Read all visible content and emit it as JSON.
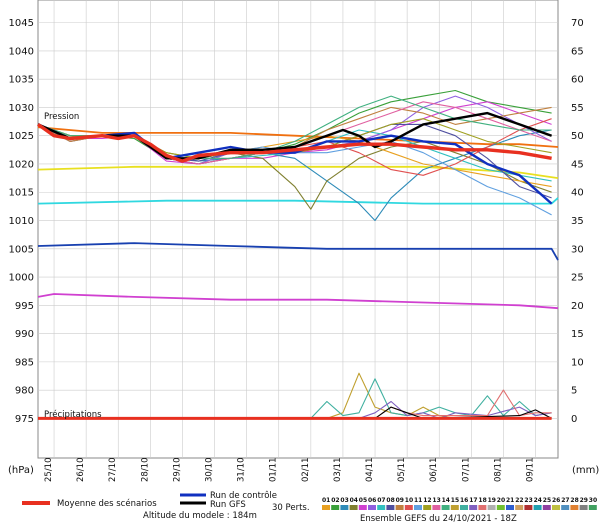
{
  "chart_data": {
    "type": "line",
    "annotations": {
      "pressure": "Pression",
      "precip": "Précipitations"
    },
    "left_axis": {
      "unit": "(hPa)",
      "ticks": [
        975,
        980,
        985,
        990,
        995,
        1000,
        1005,
        1010,
        1015,
        1020,
        1025,
        1030,
        1035,
        1040,
        1045
      ],
      "range": [
        968,
        1049
      ]
    },
    "right_axis": {
      "unit": "(mm)",
      "ticks": [
        0,
        5,
        10,
        15,
        20,
        25,
        30,
        35,
        40,
        45,
        50,
        55,
        60,
        65,
        70
      ]
    },
    "x_axis": {
      "range": [
        0,
        16.2
      ],
      "tick_labels": [
        "25/10",
        "26/10",
        "27/10",
        "28/10",
        "29/10",
        "30/10",
        "31/10",
        "01/11",
        "02/11",
        "03/11",
        "04/11",
        "05/11",
        "06/11",
        "07/11",
        "08/11",
        "09/11"
      ]
    },
    "series": [
      {
        "role": "mean",
        "color": "#e83020",
        "x": [
          0,
          0.5,
          1,
          2,
          2.5,
          3,
          3.5,
          4,
          4.5,
          5,
          6,
          7,
          8,
          9,
          10,
          11,
          12,
          13,
          14,
          15,
          16
        ],
        "y": [
          1027,
          1025,
          1024.5,
          1025,
          1024.5,
          1025,
          1023.5,
          1021.5,
          1020.5,
          1021.5,
          1022,
          1022,
          1022.5,
          1023,
          1023.5,
          1023.5,
          1023,
          1022.5,
          1022.5,
          1022,
          1021
        ]
      },
      {
        "role": "control",
        "color": "#1030c0",
        "x": [
          0,
          1,
          2,
          3,
          4,
          5,
          6,
          7,
          8,
          9,
          10,
          11,
          12,
          13,
          14,
          15,
          16
        ],
        "y": [
          1027,
          1024.5,
          1025,
          1025.5,
          1021,
          1022,
          1023,
          1022,
          1022,
          1024,
          1024,
          1025,
          1024,
          1023.5,
          1020,
          1018,
          1013
        ]
      },
      {
        "role": "gfs",
        "color": "#000000",
        "x": [
          0,
          1,
          2,
          3,
          4,
          5,
          6,
          7,
          8,
          9,
          9.5,
          10,
          10.5,
          11,
          12,
          13,
          14,
          15,
          16
        ],
        "y": [
          1027,
          1024.5,
          1025,
          1025,
          1021,
          1021,
          1022.5,
          1022.5,
          1023,
          1025,
          1026,
          1025,
          1023,
          1024,
          1027,
          1028,
          1029,
          1027,
          1025
        ]
      },
      {
        "role": "pert",
        "color": "#3aa03a",
        "x": [
          0,
          1,
          2,
          3,
          4,
          5,
          6,
          7,
          8,
          9,
          10,
          11,
          12,
          13,
          14,
          15,
          16
        ],
        "y": [
          1027,
          1024,
          1025,
          1024.5,
          1021,
          1020,
          1022,
          1022,
          1023.5,
          1026,
          1029,
          1031,
          1032,
          1033,
          1031,
          1030,
          1029
        ]
      },
      {
        "role": "pert",
        "color": "#d040d0",
        "x": [
          0,
          1,
          2,
          3,
          4,
          5,
          6,
          7,
          8,
          9,
          10,
          11,
          12,
          13,
          14,
          15,
          16
        ],
        "y": [
          1027,
          1024.5,
          1024.5,
          1025,
          1020.5,
          1020,
          1021,
          1021,
          1022,
          1022.5,
          1024,
          1026,
          1028,
          1030,
          1031,
          1029,
          1027
        ]
      },
      {
        "role": "pert",
        "color": "#2e8bb8",
        "x": [
          0,
          1,
          2,
          3,
          4,
          5,
          6,
          7,
          8,
          9,
          10,
          10.5,
          11,
          12,
          13,
          14,
          15,
          16
        ],
        "y": [
          1027,
          1025,
          1025,
          1025,
          1021.5,
          1020.5,
          1021,
          1022,
          1021,
          1017,
          1013,
          1010,
          1014,
          1019,
          1021,
          1023,
          1025,
          1026
        ]
      },
      {
        "role": "pert",
        "color": "#808030",
        "x": [
          0,
          1,
          2,
          3,
          4,
          5,
          6,
          7,
          8,
          8.5,
          9,
          10,
          11,
          12,
          13,
          14,
          15,
          16
        ],
        "y": [
          1027,
          1024.5,
          1025,
          1025,
          1022,
          1021,
          1022,
          1021,
          1016,
          1012,
          1017,
          1021,
          1023,
          1024,
          1022,
          1020,
          1017,
          1015
        ]
      },
      {
        "role": "pert",
        "color": "#9060e0",
        "x": [
          0,
          1,
          2,
          3,
          4,
          5,
          6,
          7,
          8,
          9,
          10,
          11,
          12,
          13,
          14,
          15,
          16
        ],
        "y": [
          1027,
          1024,
          1025,
          1025,
          1021,
          1020,
          1022,
          1022,
          1022,
          1023,
          1024,
          1026,
          1030,
          1032,
          1030,
          1027,
          1024
        ]
      },
      {
        "role": "pert",
        "color": "#e8a020",
        "x": [
          0,
          1,
          2,
          3,
          4,
          5,
          6,
          7,
          8,
          9,
          10,
          11,
          12,
          13,
          14,
          15,
          16
        ],
        "y": [
          1027,
          1025,
          1025,
          1025,
          1021,
          1021,
          1022,
          1023,
          1024,
          1025,
          1024,
          1022,
          1020,
          1019,
          1018,
          1017,
          1016
        ]
      },
      {
        "role": "pert",
        "color": "#30c0c0",
        "x": [
          0,
          1,
          2,
          3,
          4,
          5,
          6,
          7,
          8,
          9,
          10,
          11,
          12,
          13,
          14,
          15,
          16
        ],
        "y": [
          1027,
          1024.5,
          1025,
          1025,
          1021,
          1020,
          1021,
          1021.5,
          1022,
          1024,
          1026,
          1025,
          1023,
          1021,
          1019,
          1018,
          1017
        ]
      },
      {
        "role": "pert",
        "color": "#5050a0",
        "x": [
          0,
          1,
          2,
          3,
          4,
          5,
          6,
          7,
          8,
          9,
          10,
          11,
          12,
          13,
          14,
          15,
          16
        ],
        "y": [
          1027,
          1024.5,
          1025,
          1025,
          1021,
          1020.5,
          1022,
          1022,
          1022.5,
          1023,
          1025,
          1027,
          1027,
          1025,
          1021,
          1016,
          1014
        ]
      },
      {
        "role": "pert",
        "color": "#c08040",
        "x": [
          0,
          1,
          2,
          3,
          4,
          5,
          6,
          7,
          8,
          9,
          10,
          11,
          12,
          13,
          14,
          15,
          16
        ],
        "y": [
          1027,
          1024,
          1025,
          1025,
          1021,
          1021,
          1022,
          1022,
          1023,
          1026,
          1028,
          1030,
          1029,
          1027,
          1028,
          1029,
          1030
        ]
      },
      {
        "role": "pert",
        "color": "#e05050",
        "x": [
          0,
          1,
          2,
          3,
          4,
          5,
          6,
          7,
          8,
          9,
          10,
          11,
          12,
          13,
          14,
          15,
          16
        ],
        "y": [
          1027,
          1025,
          1025,
          1025,
          1021,
          1020,
          1021,
          1022,
          1023,
          1024,
          1022,
          1019,
          1018,
          1020,
          1023,
          1026,
          1028
        ]
      },
      {
        "role": "pert",
        "color": "#60a0e0",
        "x": [
          0,
          1,
          2,
          3,
          4,
          5,
          6,
          7,
          8,
          9,
          10,
          11,
          12,
          13,
          14,
          15,
          16
        ],
        "y": [
          1027,
          1024.5,
          1025,
          1025,
          1021,
          1021,
          1022,
          1023,
          1022,
          1022,
          1023,
          1024,
          1022,
          1019,
          1016,
          1014,
          1011
        ]
      },
      {
        "role": "pert",
        "color": "#a0a020",
        "x": [
          0,
          1,
          2,
          3,
          4,
          5,
          6,
          7,
          8,
          9,
          10,
          11,
          12,
          13,
          14,
          15,
          16
        ],
        "y": [
          1027,
          1025,
          1025,
          1025,
          1022,
          1021,
          1022,
          1022,
          1022,
          1023,
          1025,
          1027,
          1028,
          1026,
          1024,
          1023,
          1022
        ]
      },
      {
        "role": "pert",
        "color": "#e060a0",
        "x": [
          0,
          1,
          2,
          3,
          4,
          5,
          6,
          7,
          8,
          9,
          10,
          11,
          12,
          13,
          14,
          15,
          16
        ],
        "y": [
          1027,
          1024.5,
          1025,
          1025,
          1021,
          1020,
          1021,
          1022,
          1023,
          1025,
          1027,
          1029,
          1031,
          1030,
          1028,
          1026,
          1024
        ]
      },
      {
        "role": "pert",
        "color": "#40b080",
        "x": [
          0,
          1,
          2,
          3,
          4,
          5,
          6,
          7,
          8,
          9,
          10,
          11,
          12,
          13,
          14,
          15,
          16
        ],
        "y": [
          1027,
          1025,
          1025,
          1025,
          1021,
          1021,
          1021,
          1022,
          1024,
          1027,
          1030,
          1032,
          1030,
          1028,
          1027,
          1026,
          1026
        ]
      },
      {
        "role": "other",
        "color": "#f07010",
        "x": [
          0,
          2,
          4,
          6,
          8,
          10,
          12,
          14,
          15,
          16.2
        ],
        "y": [
          1026.5,
          1025.5,
          1025.5,
          1025.5,
          1025,
          1024.5,
          1024,
          1023.5,
          1023.5,
          1023
        ]
      },
      {
        "role": "other",
        "color": "#e8e020",
        "x": [
          0,
          3,
          6,
          9,
          12,
          15,
          16.2
        ],
        "y": [
          1019,
          1019.5,
          1019.5,
          1019.5,
          1019.5,
          1018.5,
          1017.5
        ]
      },
      {
        "role": "other",
        "color": "#30d8e0",
        "x": [
          0,
          4,
          8,
          12,
          16,
          16.2
        ],
        "y": [
          1013,
          1013.5,
          1013.5,
          1013,
          1013,
          1014
        ]
      },
      {
        "role": "other",
        "color": "#1840b0",
        "x": [
          0,
          3,
          6,
          9,
          12,
          15,
          16,
          16.2
        ],
        "y": [
          1005.5,
          1006,
          1005.5,
          1005,
          1005,
          1005,
          1005,
          1003
        ]
      },
      {
        "role": "other",
        "color": "#d040d0",
        "x": [
          0,
          0.5,
          3,
          6,
          9,
          12,
          15,
          16.2
        ],
        "y": [
          996.5,
          997,
          996.5,
          996,
          996,
          995.5,
          995,
          994.5
        ]
      },
      {
        "role": "precip",
        "color": "#c0a030",
        "x": [
          9,
          9.5,
          10,
          10.5,
          11,
          11.5,
          12,
          12.5,
          13
        ],
        "y": [
          975,
          976,
          983,
          977,
          976,
          975.5,
          977,
          975.5,
          975
        ]
      },
      {
        "role": "precip",
        "color": "#40b0a0",
        "x": [
          8.5,
          9,
          9.5,
          10,
          10.5,
          11,
          11.5,
          12,
          12.5,
          13,
          13.5,
          14,
          14.5,
          15,
          15.5,
          16
        ],
        "y": [
          975,
          978,
          975.5,
          976,
          982,
          976,
          975.5,
          976,
          977,
          976,
          975.5,
          979,
          975.5,
          978,
          975.5,
          976
        ]
      },
      {
        "role": "precip",
        "color": "#8060c0",
        "x": [
          10,
          10.5,
          11,
          11.5,
          12,
          12.5,
          13,
          14,
          15,
          15.5,
          16
        ],
        "y": [
          975,
          976,
          978,
          975.5,
          976,
          975,
          976,
          975.5,
          977,
          975.5,
          976
        ]
      },
      {
        "role": "precip",
        "color": "#e07070",
        "x": [
          10.5,
          11,
          11.5,
          12,
          14,
          14.5,
          15,
          15.5,
          16
        ],
        "y": [
          975,
          977,
          976,
          975.5,
          975.5,
          980,
          975.5,
          976,
          976
        ]
      },
      {
        "role": "precip",
        "color": "#000000",
        "x": [
          10.5,
          11,
          11.5,
          12,
          15,
          15.5,
          16
        ],
        "y": [
          975,
          977,
          976,
          975,
          975.5,
          976.5,
          975
        ]
      },
      {
        "role": "precip_mean",
        "color": "#e83020",
        "x": [
          0,
          16
        ],
        "y": [
          975,
          975
        ]
      }
    ]
  },
  "legend": {
    "mean_label": "Moyenne des scénarios",
    "control_label": "Run de contrôle",
    "gfs_label": "Run GFS",
    "perts_label": "30 Perts.",
    "altitude_label": "Altitude du modele : 184m",
    "source_label": "Ensemble GEFS du 24/10/2021 - 18Z",
    "pert_numbers": [
      "01",
      "02",
      "03",
      "04",
      "05",
      "06",
      "07",
      "08",
      "09",
      "10",
      "11",
      "12",
      "13",
      "14",
      "15",
      "16",
      "17",
      "18",
      "19",
      "20",
      "21",
      "22",
      "23",
      "24",
      "25",
      "26",
      "27",
      "28",
      "29",
      "30"
    ],
    "pert_colors": [
      "#e8a020",
      "#3aa03a",
      "#2e8bb8",
      "#808030",
      "#d040d0",
      "#9060e0",
      "#30c0c0",
      "#5050a0",
      "#c08040",
      "#e05050",
      "#60a0e0",
      "#a0a020",
      "#e060a0",
      "#40b080",
      "#c0a030",
      "#40b0a0",
      "#8060c0",
      "#e07070",
      "#b0b0b0",
      "#70c030",
      "#3060d0",
      "#d0a060",
      "#b03030",
      "#20a0b0",
      "#9040a0",
      "#c0c040",
      "#5090c0",
      "#e08030",
      "#808080",
      "#40a060"
    ]
  }
}
